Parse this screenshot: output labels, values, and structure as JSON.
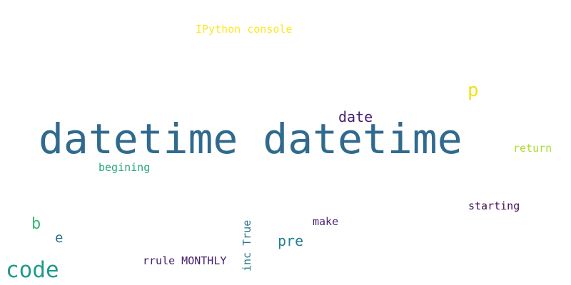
{
  "words": [
    {
      "text": "IPython console",
      "color": "#fde725"
    },
    {
      "text": "p",
      "color": "#f2e01a"
    },
    {
      "text": "date",
      "color": "#46206e"
    },
    {
      "text": "datetime datetime",
      "color": "#306a8e"
    },
    {
      "text": "return",
      "color": "#aadc32"
    },
    {
      "text": "begining",
      "color": "#29a87a"
    },
    {
      "text": "starting",
      "color": "#3f1056"
    },
    {
      "text": "b",
      "color": "#35b779"
    },
    {
      "text": "make",
      "color": "#482576"
    },
    {
      "text": "e",
      "color": "#2f6b8e"
    },
    {
      "text": "pre",
      "color": "#277f8e"
    },
    {
      "text": "rrule MONTHLY",
      "color": "#46206e"
    },
    {
      "text": "code",
      "color": "#1f9a8a"
    },
    {
      "text": "inc True",
      "color": "#2a788e"
    }
  ]
}
